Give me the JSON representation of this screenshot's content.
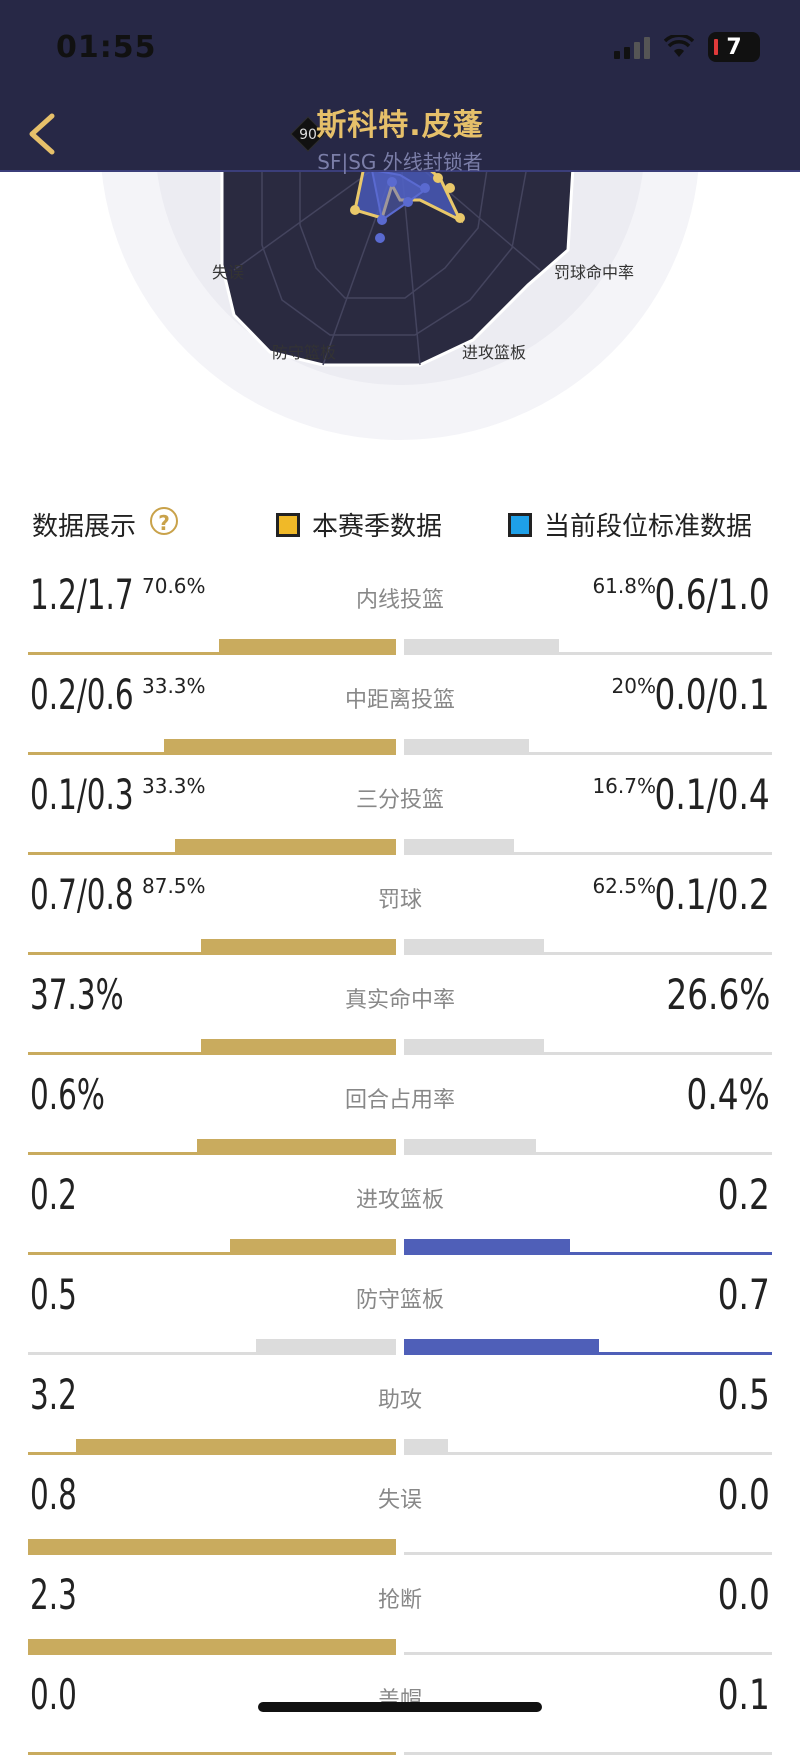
{
  "status_bar": {
    "time": "01:55",
    "battery": "7"
  },
  "header": {
    "player_name": "斯科特.皮蓬",
    "player_role": "SF|SG 外线封锁者",
    "rating": "90"
  },
  "radar": {
    "labels": [
      "失误",
      "罚球命中率",
      "防守篮板",
      "进攻篮板"
    ]
  },
  "legend": {
    "title": "数据展示",
    "season_label": "本赛季数据",
    "standard_label": "当前段位标准数据"
  },
  "colors": {
    "header_bg": "#272846",
    "gold": "#c9ab5e",
    "blue": "#4f5fb8",
    "grey_bar": "#dcdcdc",
    "season_swatch": "#f0b928",
    "standard_swatch": "#1ea0e8"
  },
  "stats": [
    {
      "label": "内线投篮",
      "left": "1.2/1.7",
      "left_pct": "70.6%",
      "right": "0.6/1.0",
      "right_pct": "61.8%",
      "left_fill": 0.48,
      "right_fill": 0.42,
      "left_color": "gold",
      "right_color": "grey"
    },
    {
      "label": "中距离投篮",
      "left": "0.2/0.6",
      "left_pct": "33.3%",
      "right": "0.0/0.1",
      "right_pct": "20%",
      "left_fill": 0.63,
      "right_fill": 0.34,
      "left_color": "gold",
      "right_color": "grey"
    },
    {
      "label": "三分投篮",
      "left": "0.1/0.3",
      "left_pct": "33.3%",
      "right": "0.1/0.4",
      "right_pct": "16.7%",
      "left_fill": 0.6,
      "right_fill": 0.3,
      "left_color": "gold",
      "right_color": "grey"
    },
    {
      "label": "罚球",
      "left": "0.7/0.8",
      "left_pct": "87.5%",
      "right": "0.1/0.2",
      "right_pct": "62.5%",
      "left_fill": 0.53,
      "right_fill": 0.38,
      "left_color": "gold",
      "right_color": "grey"
    },
    {
      "label": "真实命中率",
      "left": "37.3%",
      "left_pct": "",
      "right": "26.6%",
      "right_pct": "",
      "left_fill": 0.53,
      "right_fill": 0.38,
      "left_color": "gold",
      "right_color": "grey"
    },
    {
      "label": "回合占用率",
      "left": "0.6%",
      "left_pct": "",
      "right": "0.4%",
      "right_pct": "",
      "left_fill": 0.54,
      "right_fill": 0.36,
      "left_color": "gold",
      "right_color": "grey"
    },
    {
      "label": "进攻篮板",
      "left": "0.2",
      "left_pct": "",
      "right": "0.2",
      "right_pct": "",
      "left_fill": 0.45,
      "right_fill": 0.45,
      "left_color": "gold",
      "right_color": "blue"
    },
    {
      "label": "防守篮板",
      "left": "0.5",
      "left_pct": "",
      "right": "0.7",
      "right_pct": "",
      "left_fill": 0.38,
      "right_fill": 0.53,
      "left_color": "grey",
      "right_color": "blue"
    },
    {
      "label": "助攻",
      "left": "3.2",
      "left_pct": "",
      "right": "0.5",
      "right_pct": "",
      "left_fill": 0.87,
      "right_fill": 0.12,
      "left_color": "gold",
      "right_color": "grey"
    },
    {
      "label": "失误",
      "left": "0.8",
      "left_pct": "",
      "right": "0.0",
      "right_pct": "",
      "left_fill": 1.0,
      "right_fill": 0.0,
      "left_color": "gold",
      "right_color": "grey"
    },
    {
      "label": "抢断",
      "left": "2.3",
      "left_pct": "",
      "right": "0.0",
      "right_pct": "",
      "left_fill": 1.0,
      "right_fill": 0.0,
      "left_color": "gold",
      "right_color": "grey"
    },
    {
      "label": "盖帽",
      "left": "0.0",
      "left_pct": "",
      "right": "0.1",
      "right_pct": "",
      "left_fill": 0.0,
      "right_fill": 0.0,
      "left_color": "gold",
      "right_color": "grey"
    }
  ]
}
